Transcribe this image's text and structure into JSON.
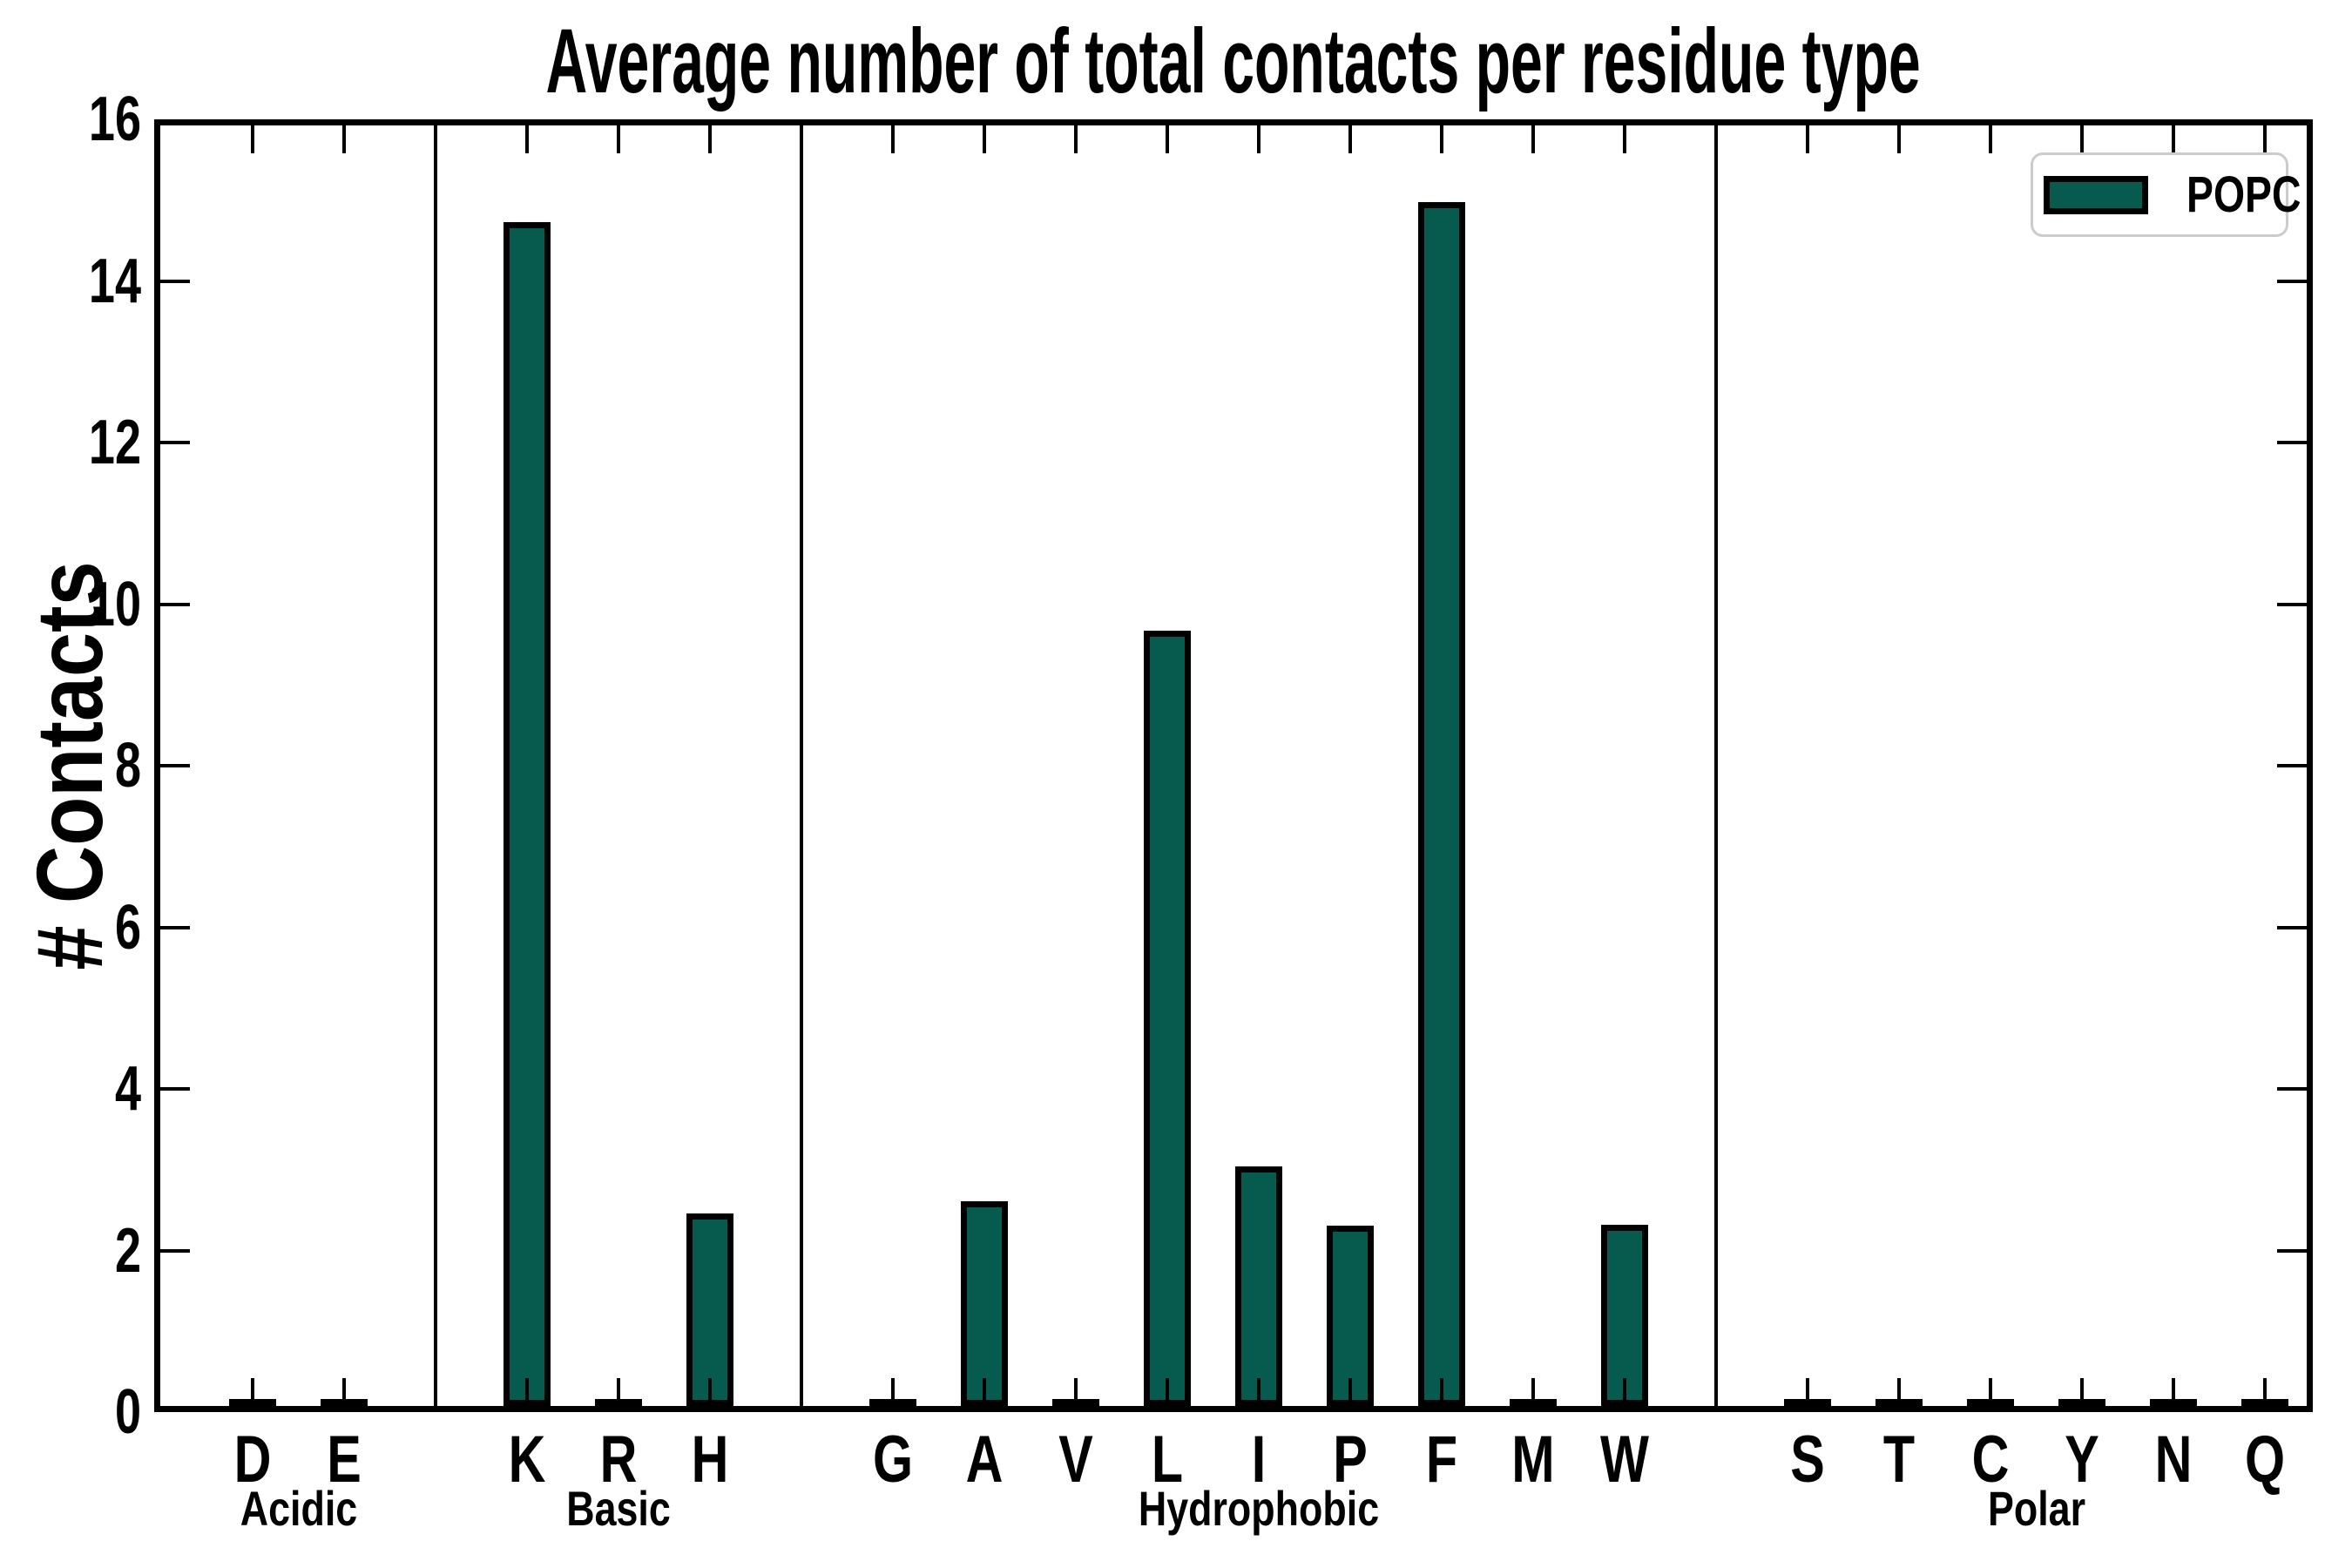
{
  "chart_data": {
    "type": "bar",
    "title": "Average number of total contacts per residue type",
    "xlabel": "",
    "ylabel": "# Contacts",
    "ylim": [
      0,
      16
    ],
    "ytick_interval": 2,
    "yticks": [
      0,
      2,
      4,
      6,
      8,
      10,
      12,
      14,
      16
    ],
    "grid": false,
    "separators_between_groups": true,
    "bar_color": "#065a4e",
    "bar_edge_color": "#000000",
    "legend": {
      "position": "upper right",
      "entries": [
        {
          "label": "POPC",
          "color": "#065a4e"
        }
      ]
    },
    "groups": [
      {
        "label": "Acidic",
        "categories": [
          "D",
          "E"
        ],
        "values": [
          0.02,
          0.02
        ]
      },
      {
        "label": "Basic",
        "categories": [
          "K",
          "R",
          "H"
        ],
        "values": [
          14.65,
          0.02,
          2.38
        ]
      },
      {
        "label": "Hydrophobic",
        "categories": [
          "G",
          "A",
          "V",
          "L",
          "I",
          "P",
          "F",
          "M",
          "W"
        ],
        "values": [
          0.02,
          2.53,
          0.02,
          9.6,
          2.97,
          2.23,
          14.9,
          0.02,
          2.24
        ]
      },
      {
        "label": "Polar",
        "categories": [
          "S",
          "T",
          "C",
          "Y",
          "N",
          "Q"
        ],
        "values": [
          0.02,
          0.02,
          0.02,
          0.02,
          0.02,
          0.02
        ]
      }
    ]
  }
}
